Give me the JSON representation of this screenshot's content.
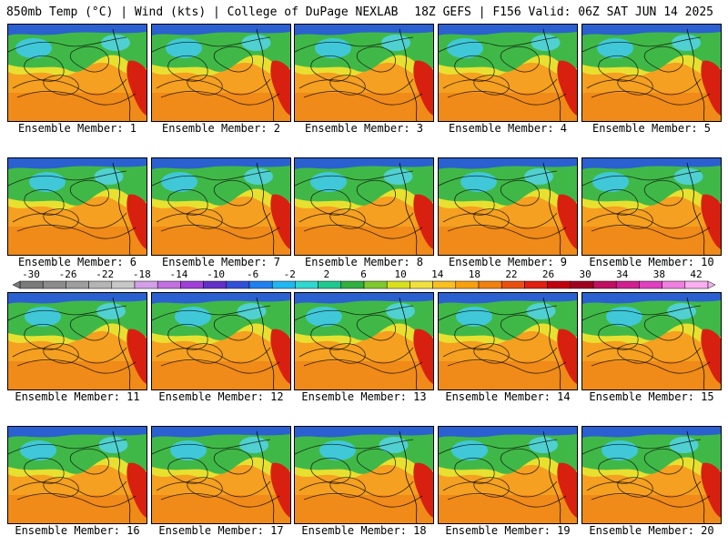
{
  "header": {
    "left": "850mb Temp (°C) | Wind (kts) | College of DuPage NEXLAB",
    "right": "18Z GEFS | F156 Valid: 06Z SAT JUN 14 2025"
  },
  "panels": [
    {
      "label": "Ensemble Member: 1"
    },
    {
      "label": "Ensemble Member: 2"
    },
    {
      "label": "Ensemble Member: 3"
    },
    {
      "label": "Ensemble Member: 4"
    },
    {
      "label": "Ensemble Member: 5"
    },
    {
      "label": "Ensemble Member: 6"
    },
    {
      "label": "Ensemble Member: 7"
    },
    {
      "label": "Ensemble Member: 8"
    },
    {
      "label": "Ensemble Member: 9"
    },
    {
      "label": "Ensemble Member: 10"
    },
    {
      "label": "Ensemble Member: 11"
    },
    {
      "label": "Ensemble Member: 12"
    },
    {
      "label": "Ensemble Member: 13"
    },
    {
      "label": "Ensemble Member: 14"
    },
    {
      "label": "Ensemble Member: 15"
    },
    {
      "label": "Ensemble Member: 16"
    },
    {
      "label": "Ensemble Member: 17"
    },
    {
      "label": "Ensemble Member: 18"
    },
    {
      "label": "Ensemble Member: 19"
    },
    {
      "label": "Ensemble Member: 20"
    }
  ],
  "colorbar": {
    "ticks": [
      "-30",
      "-26",
      "-22",
      "-18",
      "-14",
      "-10",
      "-6",
      "-2",
      "2",
      "6",
      "10",
      "14",
      "18",
      "22",
      "26",
      "30",
      "34",
      "38",
      "42"
    ],
    "colors": [
      "#7a7a7a",
      "#8c8c8c",
      "#9e9e9e",
      "#b4b4b4",
      "#c8c8c8",
      "#d2a0e6",
      "#c070e0",
      "#a040d8",
      "#6030c8",
      "#3050d8",
      "#2080f0",
      "#20b8f0",
      "#30d8d0",
      "#20c890",
      "#30b040",
      "#80c830",
      "#d8e020",
      "#f0e040",
      "#f8c020",
      "#f8a010",
      "#f08010",
      "#e85010",
      "#e02010",
      "#c00010",
      "#a00020",
      "#c01060",
      "#d02090",
      "#e040c0",
      "#f080e0",
      "#f8b0f0"
    ]
  }
}
